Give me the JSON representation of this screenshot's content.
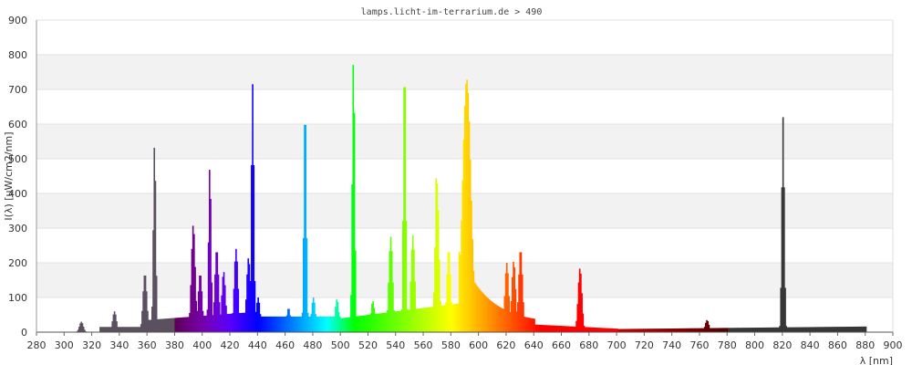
{
  "chart_data": {
    "type": "area",
    "title": "lamps.licht-im-terrarium.de > 490",
    "xlabel": "λ [nm]",
    "ylabel": "I(λ) [uW/cm2/nm]",
    "xlim": [
      280,
      900
    ],
    "ylim": [
      0,
      900
    ],
    "x_ticks": [
      280,
      300,
      320,
      340,
      360,
      380,
      400,
      420,
      440,
      460,
      480,
      500,
      520,
      540,
      560,
      580,
      600,
      620,
      640,
      660,
      680,
      700,
      720,
      740,
      760,
      780,
      800,
      820,
      840,
      860,
      880,
      900
    ],
    "y_ticks": [
      0,
      100,
      200,
      300,
      400,
      500,
      600,
      700,
      800,
      900
    ],
    "grid": true,
    "alternating_bands": true,
    "colored_by_wavelength": true,
    "peaks": [
      {
        "x": 312,
        "y": 30
      },
      {
        "x": 336,
        "y": 60
      },
      {
        "x": 358,
        "y": 170
      },
      {
        "x": 365,
        "y": 545
      },
      {
        "x": 393,
        "y": 310
      },
      {
        "x": 398,
        "y": 170
      },
      {
        "x": 405,
        "y": 480
      },
      {
        "x": 410,
        "y": 240
      },
      {
        "x": 415,
        "y": 175
      },
      {
        "x": 424,
        "y": 240
      },
      {
        "x": 433,
        "y": 215
      },
      {
        "x": 436,
        "y": 715
      },
      {
        "x": 440,
        "y": 100
      },
      {
        "x": 462,
        "y": 70
      },
      {
        "x": 474,
        "y": 660
      },
      {
        "x": 480,
        "y": 100
      },
      {
        "x": 497,
        "y": 95
      },
      {
        "x": 509,
        "y": 790
      },
      {
        "x": 523,
        "y": 90
      },
      {
        "x": 536,
        "y": 275
      },
      {
        "x": 546,
        "y": 780
      },
      {
        "x": 552,
        "y": 280
      },
      {
        "x": 569,
        "y": 455
      },
      {
        "x": 578,
        "y": 240
      },
      {
        "x": 591,
        "y": 730
      },
      {
        "x": 620,
        "y": 200
      },
      {
        "x": 625,
        "y": 205
      },
      {
        "x": 630,
        "y": 240
      },
      {
        "x": 673,
        "y": 185
      },
      {
        "x": 765,
        "y": 35
      },
      {
        "x": 820,
        "y": 620
      }
    ]
  }
}
